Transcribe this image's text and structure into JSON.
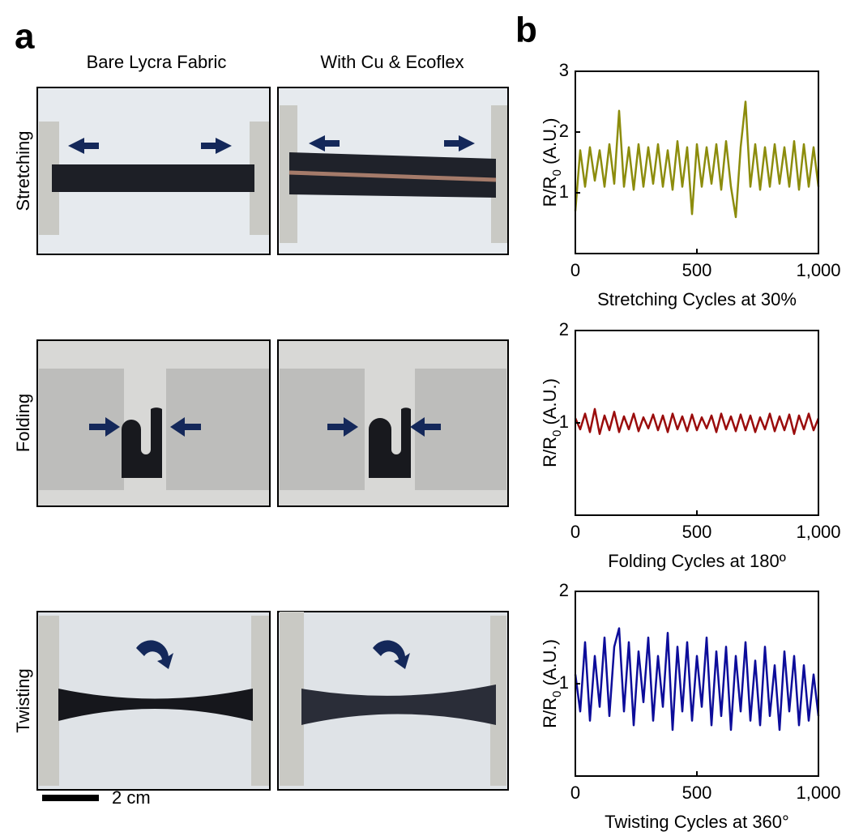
{
  "figure": {
    "panel_a": "a",
    "panel_b": "b",
    "columns": [
      "Bare Lycra Fabric",
      "With Cu & Ecoflex"
    ],
    "rows": [
      "Stretching",
      "Folding",
      "Twisting"
    ],
    "scale_bar": "2 cm"
  },
  "chart_data": [
    {
      "type": "line",
      "xlabel": "Stretching Cycles at 30%",
      "ylabel": [
        "R/R",
        "0",
        " (A.U.)"
      ],
      "color": "#8c8c0c",
      "xlim": [
        0,
        1000
      ],
      "xticks": [
        0,
        500,
        {
          "value": 1000,
          "label": "1,000"
        }
      ],
      "ylim": [
        0,
        3
      ],
      "yticks": [
        1,
        2,
        3
      ],
      "series": [
        {
          "x": [
            0,
            20,
            40,
            60,
            80,
            100,
            120,
            140,
            160,
            180,
            200,
            220,
            240,
            260,
            280,
            300,
            320,
            340,
            360,
            380,
            400,
            420,
            440,
            460,
            480,
            500,
            520,
            540,
            560,
            580,
            600,
            620,
            640,
            660,
            680,
            700,
            720,
            740,
            760,
            780,
            800,
            820,
            840,
            860,
            880,
            900,
            920,
            940,
            960,
            980,
            1000
          ],
          "values": [
            0.7,
            1.7,
            1.1,
            1.75,
            1.2,
            1.7,
            1.1,
            1.8,
            1.15,
            2.35,
            1.1,
            1.75,
            1.05,
            1.8,
            1.1,
            1.75,
            1.15,
            1.8,
            1.1,
            1.7,
            1.05,
            1.85,
            1.1,
            1.75,
            0.65,
            1.8,
            1.1,
            1.75,
            1.15,
            1.8,
            1.05,
            1.85,
            1.1,
            0.6,
            1.75,
            2.5,
            1.1,
            1.8,
            1.05,
            1.75,
            1.1,
            1.8,
            1.15,
            1.75,
            1.1,
            1.85,
            1.05,
            1.8,
            1.1,
            1.75,
            1.1
          ]
        }
      ]
    },
    {
      "type": "line",
      "xlabel": "Folding Cycles at 180º",
      "ylabel": [
        "R/R",
        "0",
        " (A.U.)"
      ],
      "color": "#9a0c0c",
      "xlim": [
        0,
        1000
      ],
      "xticks": [
        0,
        500,
        {
          "value": 1000,
          "label": "1,000"
        }
      ],
      "ylim": [
        0,
        2
      ],
      "yticks": [
        1,
        2
      ],
      "series": [
        {
          "x": [
            0,
            20,
            40,
            60,
            80,
            100,
            120,
            140,
            160,
            180,
            200,
            220,
            240,
            260,
            280,
            300,
            320,
            340,
            360,
            380,
            400,
            420,
            440,
            460,
            480,
            500,
            520,
            540,
            560,
            580,
            600,
            620,
            640,
            660,
            680,
            700,
            720,
            740,
            760,
            780,
            800,
            820,
            840,
            860,
            880,
            900,
            920,
            940,
            960,
            980,
            1000
          ],
          "values": [
            1.05,
            0.93,
            1.1,
            0.9,
            1.15,
            0.88,
            1.08,
            0.92,
            1.12,
            0.9,
            1.07,
            0.93,
            1.1,
            0.91,
            1.06,
            0.94,
            1.09,
            0.92,
            1.08,
            0.9,
            1.1,
            0.93,
            1.07,
            0.91,
            1.09,
            0.92,
            1.06,
            0.94,
            1.08,
            0.9,
            1.1,
            0.93,
            1.07,
            0.91,
            1.09,
            0.92,
            1.08,
            0.9,
            1.06,
            0.93,
            1.1,
            0.91,
            1.07,
            0.92,
            1.09,
            0.88,
            1.08,
            0.93,
            1.1,
            0.92,
            1.05
          ]
        }
      ]
    },
    {
      "type": "line",
      "xlabel": "Twisting Cycles at 360°",
      "ylabel": [
        "R/R",
        "0",
        " (A.U.)"
      ],
      "color": "#0c0c9a",
      "xlim": [
        0,
        1000
      ],
      "xticks": [
        0,
        500,
        {
          "value": 1000,
          "label": "1,000"
        }
      ],
      "ylim": [
        0,
        2
      ],
      "yticks": [
        1,
        2
      ],
      "series": [
        {
          "x": [
            0,
            20,
            40,
            60,
            80,
            100,
            120,
            140,
            160,
            180,
            200,
            220,
            240,
            260,
            280,
            300,
            320,
            340,
            360,
            380,
            400,
            420,
            440,
            460,
            480,
            500,
            520,
            540,
            560,
            580,
            600,
            620,
            640,
            660,
            680,
            700,
            720,
            740,
            760,
            780,
            800,
            820,
            840,
            860,
            880,
            900,
            920,
            940,
            960,
            980,
            1000
          ],
          "values": [
            1.1,
            0.7,
            1.45,
            0.6,
            1.3,
            0.75,
            1.5,
            0.65,
            1.4,
            1.6,
            0.7,
            1.45,
            0.55,
            1.35,
            0.8,
            1.5,
            0.6,
            1.3,
            0.75,
            1.55,
            0.5,
            1.4,
            0.7,
            1.45,
            0.6,
            1.3,
            0.75,
            1.5,
            0.55,
            1.35,
            0.65,
            1.4,
            0.5,
            1.3,
            0.7,
            1.45,
            0.6,
            1.25,
            0.55,
            1.4,
            0.65,
            1.2,
            0.5,
            1.35,
            0.7,
            1.3,
            0.55,
            1.2,
            0.6,
            1.1,
            0.65
          ]
        }
      ]
    }
  ]
}
